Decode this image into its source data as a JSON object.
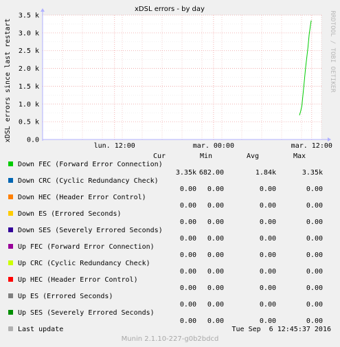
{
  "chart_data": {
    "type": "line",
    "title": "xDSL errors - by day",
    "ylabel": "xDSL errors since last restart",
    "watermark": "RRDTOOL / TOBI OETIKER",
    "yticks": [
      "0.0",
      "0.5 k",
      "1.0 k",
      "1.5 k",
      "2.0 k",
      "2.5 k",
      "3.0 k",
      "3.5 k"
    ],
    "ylim": [
      0,
      3500
    ],
    "xticks": [
      "lun. 12:00",
      "mar. 00:00",
      "mar. 12:00"
    ],
    "grid": true,
    "series": [
      {
        "name": "Down FEC (Forward Error Connection)",
        "color": "#00cc00",
        "points": [
          [
            0.0,
            682
          ],
          [
            0.15,
            800
          ],
          [
            0.3,
            950
          ],
          [
            0.45,
            1300
          ],
          [
            0.6,
            1650
          ],
          [
            0.75,
            2000
          ],
          [
            0.9,
            2300
          ],
          [
            1.05,
            2600
          ],
          [
            1.2,
            2950
          ],
          [
            1.35,
            3200
          ],
          [
            1.45,
            3350
          ]
        ]
      },
      {
        "name": "Down CRC (Cyclic Redundancy Check)",
        "color": "#0066b3",
        "points": []
      },
      {
        "name": "Down HEC (Header Error Control)",
        "color": "#ff8000",
        "points": []
      },
      {
        "name": "Down ES (Errored Seconds)",
        "color": "#ffcc00",
        "points": []
      },
      {
        "name": "Down SES (Severely Errored Seconds)",
        "color": "#330099",
        "points": []
      },
      {
        "name": "Up FEC (Forward Error Connection)",
        "color": "#990099",
        "points": []
      },
      {
        "name": "Up CRC (Cyclic Redundancy Check)",
        "color": "#ccff00",
        "points": []
      },
      {
        "name": "Up HEC (Header Error Control)",
        "color": "#ff0000",
        "points": []
      },
      {
        "name": "Up ES (Errored Seconds)",
        "color": "#808080",
        "points": []
      },
      {
        "name": "Up SES (Severely Errored Seconds)",
        "color": "#008f00",
        "points": []
      }
    ]
  },
  "legend": {
    "headers": {
      "cur": "Cur",
      "min": "Min",
      "avg": "Avg",
      "max": "Max"
    },
    "rows": [
      {
        "label": "Down FEC (Forward Error Connection)",
        "color": "#00cc00",
        "cur": "3.35k",
        "min": "682.00",
        "avg": "1.84k",
        "max": "3.35k"
      },
      {
        "label": "Down CRC (Cyclic Redundancy Check)",
        "color": "#0066b3",
        "cur": "0.00",
        "min": "0.00",
        "avg": "0.00",
        "max": "0.00"
      },
      {
        "label": "Down HEC (Header Error Control)",
        "color": "#ff8000",
        "cur": "0.00",
        "min": "0.00",
        "avg": "0.00",
        "max": "0.00"
      },
      {
        "label": "Down ES (Errored Seconds)",
        "color": "#ffcc00",
        "cur": "0.00",
        "min": "0.00",
        "avg": "0.00",
        "max": "0.00"
      },
      {
        "label": "Down SES (Severely Errored Seconds)",
        "color": "#330099",
        "cur": "0.00",
        "min": "0.00",
        "avg": "0.00",
        "max": "0.00"
      },
      {
        "label": "Up FEC (Forward Error Connection)",
        "color": "#990099",
        "cur": "0.00",
        "min": "0.00",
        "avg": "0.00",
        "max": "0.00"
      },
      {
        "label": "Up CRC (Cyclic Redundancy Check)",
        "color": "#ccff00",
        "cur": "0.00",
        "min": "0.00",
        "avg": "0.00",
        "max": "0.00"
      },
      {
        "label": "Up HEC (Header Error Control)",
        "color": "#ff0000",
        "cur": "0.00",
        "min": "0.00",
        "avg": "0.00",
        "max": "0.00"
      },
      {
        "label": "Up ES (Errored Seconds)",
        "color": "#808080",
        "cur": "0.00",
        "min": "0.00",
        "avg": "0.00",
        "max": "0.00"
      },
      {
        "label": "Up SES (Severely Errored Seconds)",
        "color": "#008f00",
        "cur": "0.00",
        "min": "0.00",
        "avg": "0.00",
        "max": "0.00"
      }
    ],
    "last_update_label": "Last update",
    "last_update_value": "Tue Sep  6 12:45:37 2016"
  },
  "footer": "Munin 2.1.10-227-g0b2bdcd"
}
